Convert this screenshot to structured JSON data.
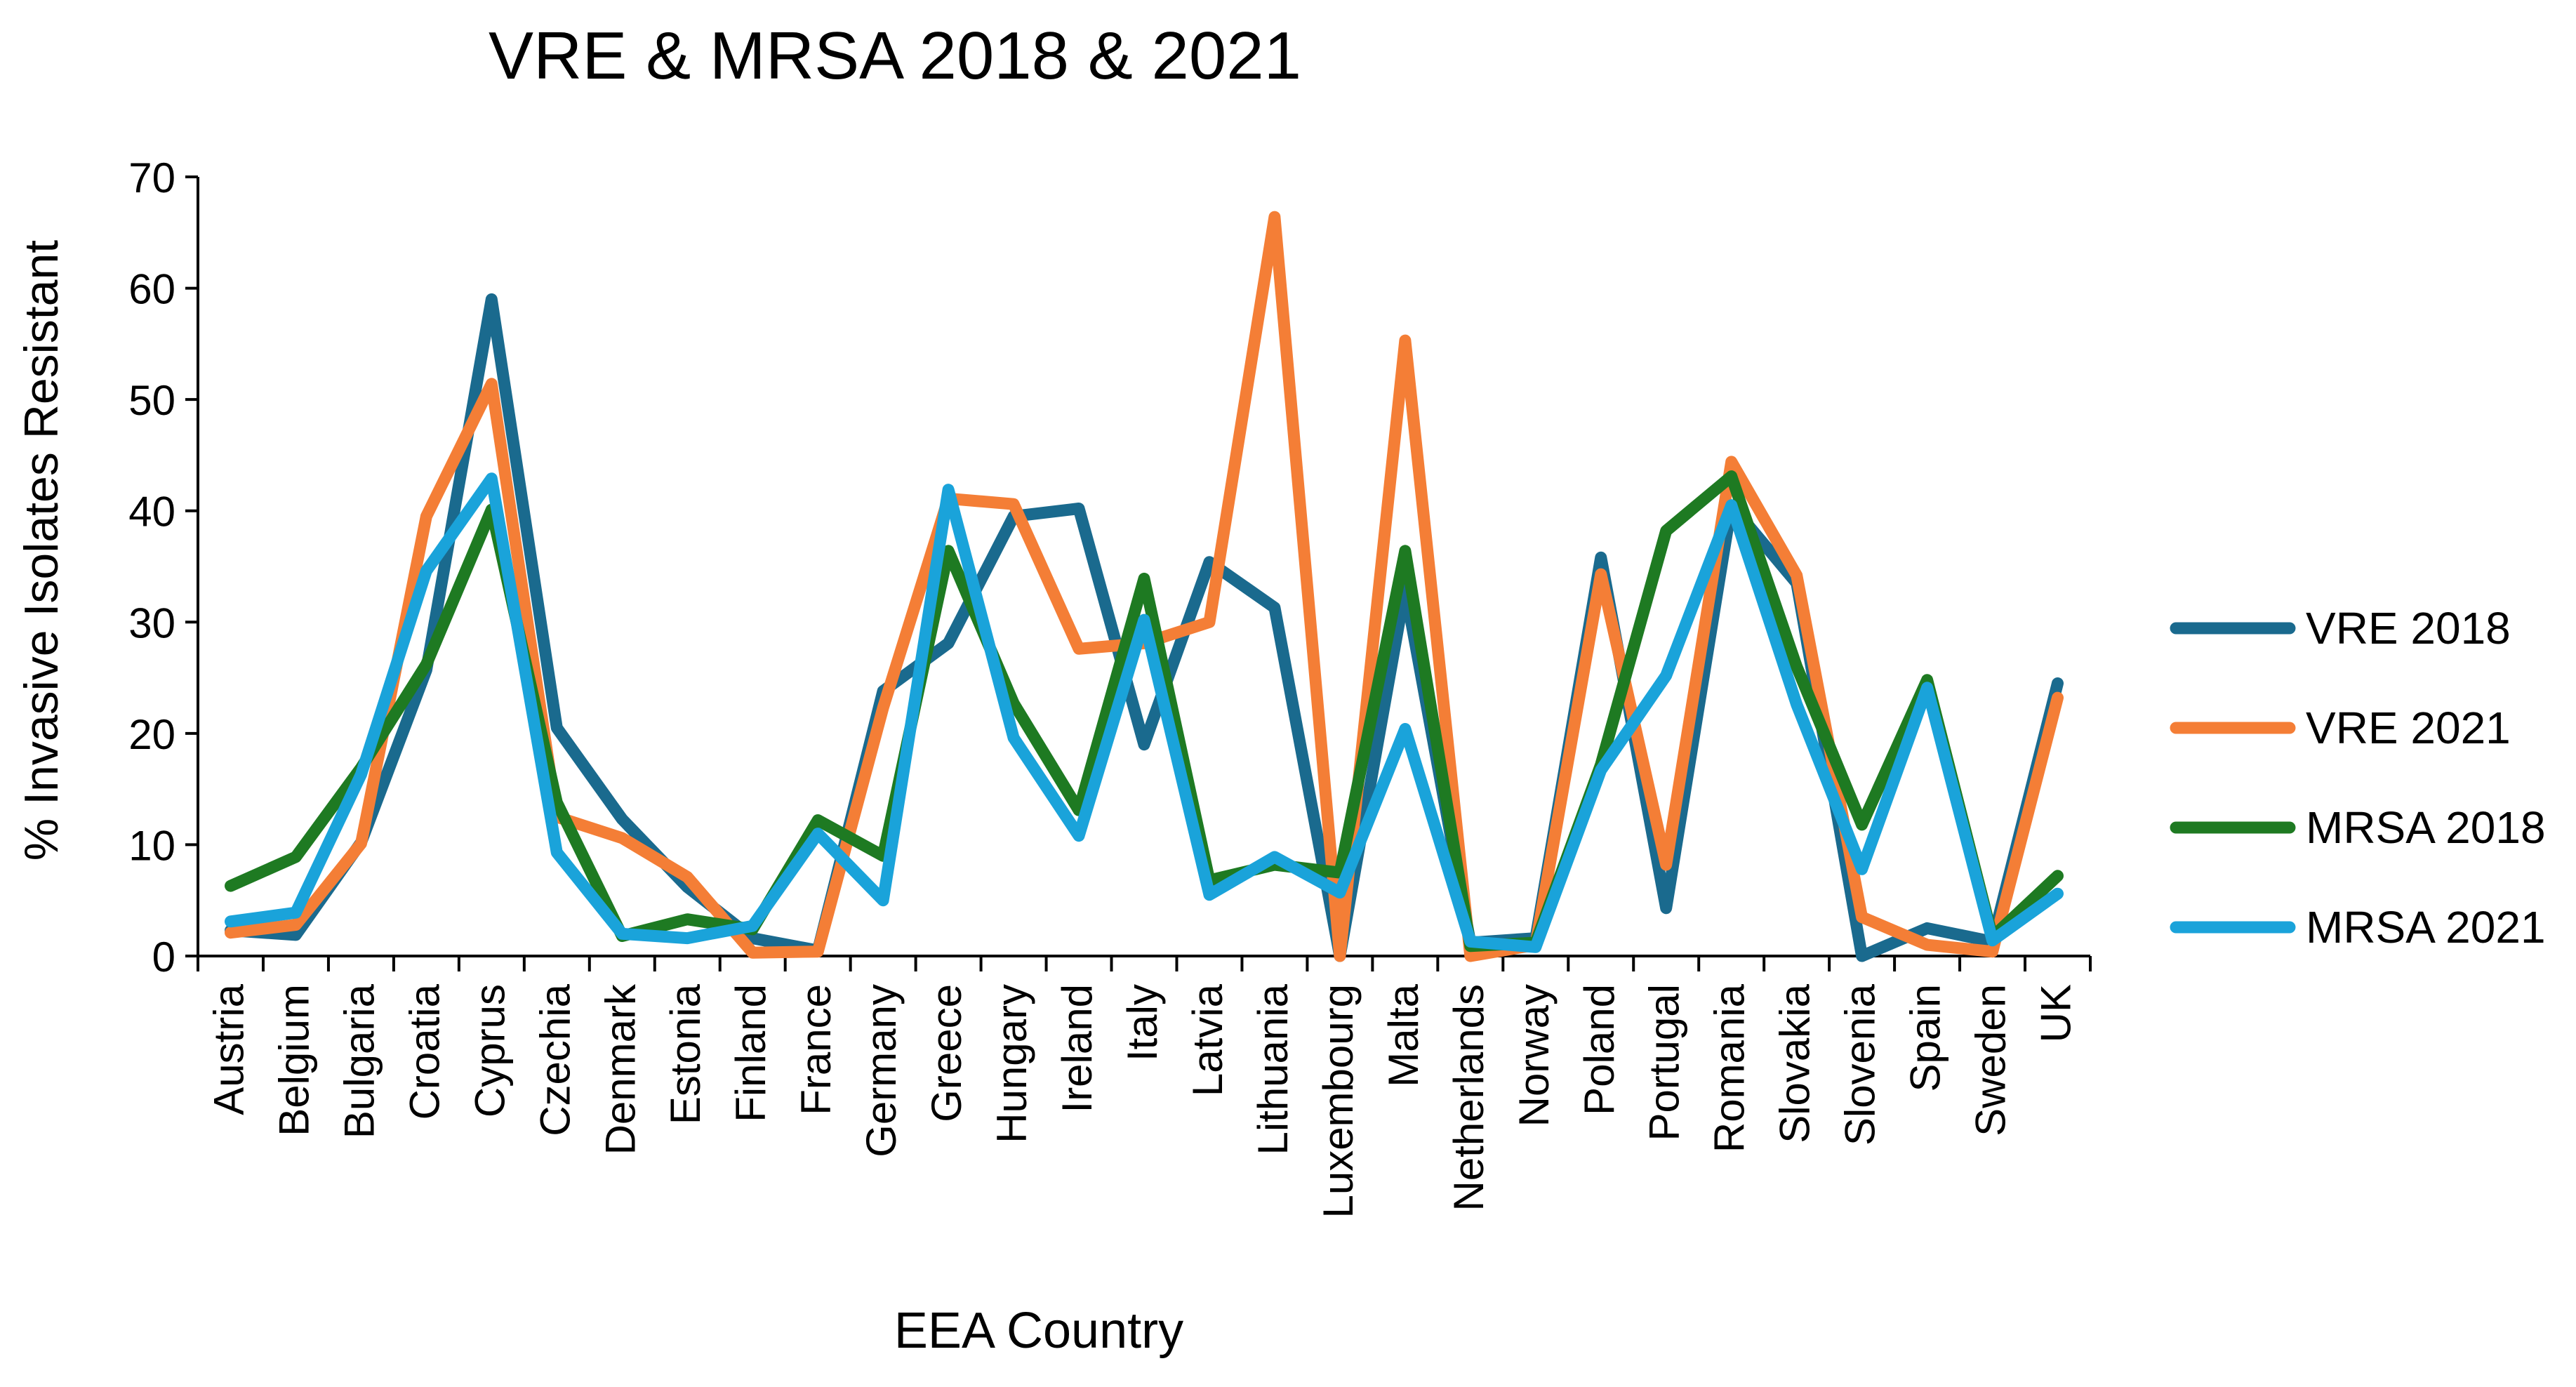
{
  "chart_data": {
    "type": "line",
    "title": "VRE & MRSA  2018 & 2021",
    "xlabel": "EEA Country",
    "ylabel": "% Invasive Isolates Resistant",
    "ylim": [
      0,
      70
    ],
    "yticks": [
      0,
      10,
      20,
      30,
      40,
      50,
      60,
      70
    ],
    "grid": false,
    "legend_position": "right",
    "categories": [
      "Austria",
      "Belgium",
      "Bulgaria",
      "Croatia",
      "Cyprus",
      "Czechia",
      "Denmark",
      "Estonia",
      "Finland",
      "France",
      "Germany",
      "Greece",
      "Hungary",
      "Ireland",
      "Italy",
      "Latvia",
      "Lithuania",
      "Luxembourg",
      "Malta",
      "Netherlands",
      "Norway",
      "Poland",
      "Portugal",
      "Romania",
      "Slovakia",
      "Slovenia",
      "Spain",
      "Sweden",
      "UK"
    ],
    "series": [
      {
        "name": "VRE 2018",
        "color": "#1a6a8e",
        "values": [
          2.3,
          1.9,
          10.2,
          25.7,
          59,
          20.5,
          12.3,
          6.2,
          1.6,
          0.5,
          23.8,
          28.1,
          39.5,
          40.2,
          19,
          35.4,
          31.3,
          0,
          33,
          1.2,
          1.6,
          35.8,
          4.3,
          40.5,
          33.5,
          0,
          2.5,
          1.3,
          24.5
        ]
      },
      {
        "name": "VRE 2021",
        "color": "#f47e36",
        "values": [
          2.1,
          2.8,
          10.1,
          39.5,
          51.4,
          12.5,
          10.6,
          7.1,
          0.3,
          0.4,
          22.3,
          41.1,
          40.6,
          27.6,
          28.1,
          30,
          66.4,
          0,
          55.3,
          0,
          1,
          34.3,
          8.2,
          44.4,
          34.2,
          3.5,
          1,
          0.4,
          23.2
        ]
      },
      {
        "name": "MRSA 2018",
        "color": "#1e7a22",
        "values": [
          6.3,
          8.9,
          16.9,
          26.2,
          40.1,
          13.8,
          1.8,
          3.3,
          2.4,
          12.2,
          9,
          36.4,
          22.7,
          13.1,
          33.9,
          6.8,
          8.2,
          7.5,
          36.4,
          0.9,
          1.2,
          17.2,
          38.2,
          43.1,
          26,
          11.8,
          24.8,
          1.7,
          7.2
        ]
      },
      {
        "name": "MRSA 2021",
        "color": "#1aa3da",
        "values": [
          3.1,
          3.9,
          16.3,
          34.6,
          42.9,
          9.3,
          2,
          1.6,
          2.7,
          11,
          5,
          41.9,
          19.6,
          10.8,
          30.2,
          5.5,
          8.9,
          5.7,
          20.4,
          1.3,
          0.8,
          16.7,
          25.2,
          40.5,
          22.6,
          7.8,
          24.1,
          1.4,
          5.6
        ]
      }
    ]
  }
}
